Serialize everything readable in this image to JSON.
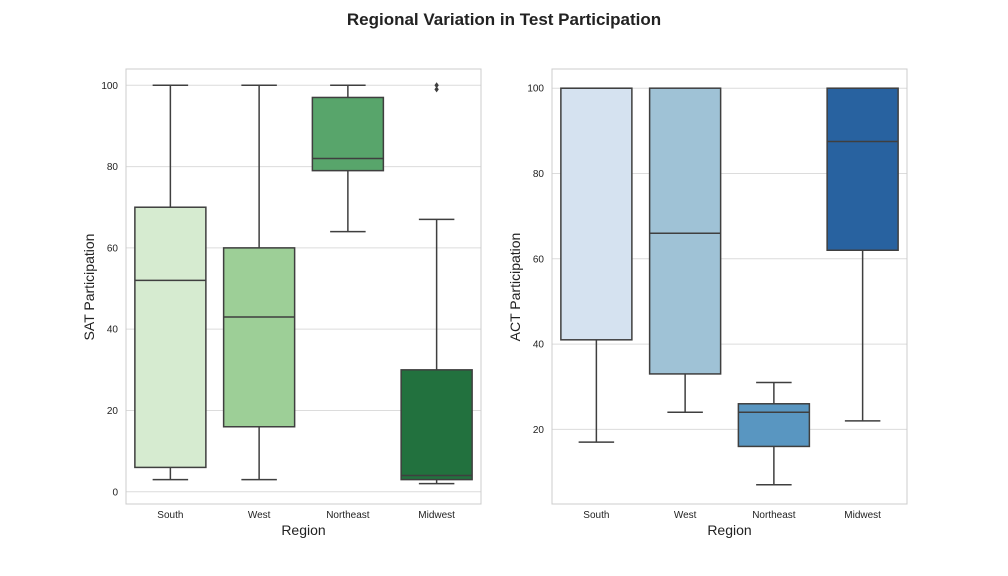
{
  "figure": {
    "title": "Regional Variation in Test Participation"
  },
  "chart_data": [
    {
      "type": "box",
      "ylabel": "SAT Participation",
      "xlabel": "Region",
      "categories": [
        "South",
        "West",
        "Northeast",
        "Midwest"
      ],
      "ylim": [
        -3,
        104
      ],
      "yticks": [
        0,
        20,
        40,
        60,
        80,
        100
      ],
      "grid": true,
      "boxes": [
        {
          "category": "South",
          "whisker_low": 3,
          "q1": 6,
          "median": 52,
          "q3": 70,
          "whisker_high": 100,
          "outliers": [],
          "color": "#d6ebd0"
        },
        {
          "category": "West",
          "whisker_low": 3,
          "q1": 16,
          "median": 43,
          "q3": 60,
          "whisker_high": 100,
          "outliers": [],
          "color": "#9dcf97"
        },
        {
          "category": "Northeast",
          "whisker_low": 64,
          "q1": 79,
          "median": 82,
          "q3": 97,
          "whisker_high": 100,
          "outliers": [],
          "color": "#58a56b"
        },
        {
          "category": "Midwest",
          "whisker_low": 2,
          "q1": 3,
          "median": 4,
          "q3": 30,
          "whisker_high": 67,
          "outliers": [
            99,
            100
          ],
          "color": "#22713e"
        }
      ]
    },
    {
      "type": "box",
      "ylabel": "ACT Participation",
      "xlabel": "Region",
      "categories": [
        "South",
        "West",
        "Northeast",
        "Midwest"
      ],
      "ylim": [
        2.5,
        104.5
      ],
      "yticks": [
        20,
        40,
        60,
        80,
        100
      ],
      "grid": true,
      "boxes": [
        {
          "category": "South",
          "whisker_low": 17,
          "q1": 41,
          "median": 100,
          "q3": 100,
          "whisker_high": 100,
          "outliers": [],
          "color": "#d5e2f0"
        },
        {
          "category": "West",
          "whisker_low": 24,
          "q1": 33,
          "median": 66,
          "q3": 100,
          "whisker_high": 100,
          "outliers": [],
          "color": "#9fc2d6"
        },
        {
          "category": "Northeast",
          "whisker_low": 7,
          "q1": 16,
          "median": 24,
          "q3": 26,
          "whisker_high": 31,
          "outliers": [],
          "color": "#5996c1"
        },
        {
          "category": "Midwest",
          "whisker_low": 22,
          "q1": 62,
          "median": 87.5,
          "q3": 100,
          "whisker_high": 100,
          "outliers": [],
          "color": "#2862a0"
        }
      ]
    }
  ]
}
